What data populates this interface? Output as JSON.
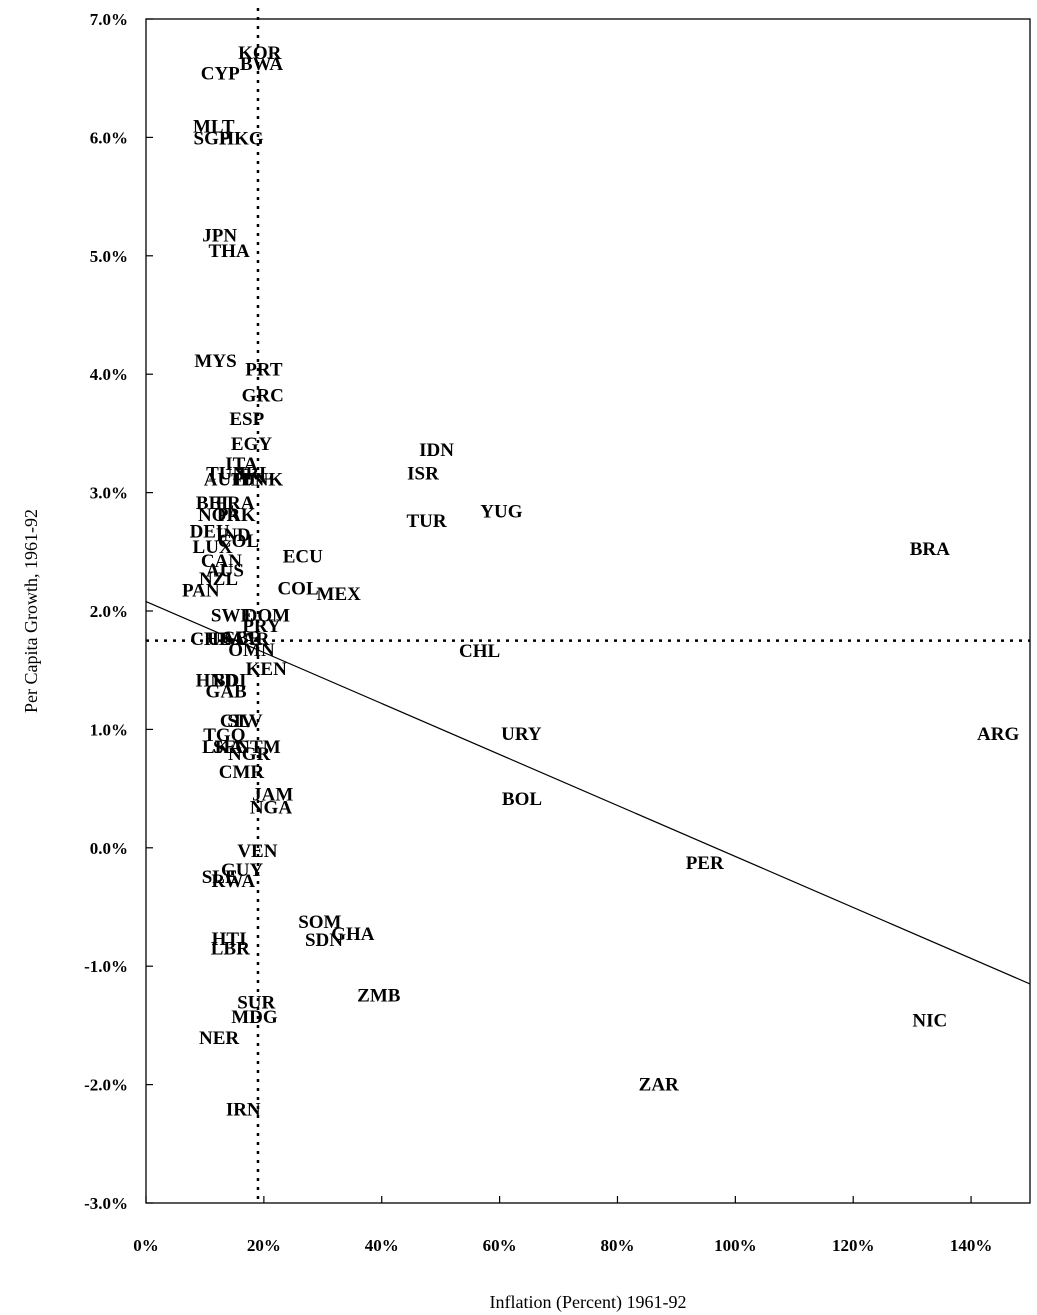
{
  "chart_data": {
    "type": "scatter",
    "xlabel": "Inflation (Percent) 1961-92",
    "ylabel": "Per Capita Growth, 1961-92",
    "xlim": [
      0,
      150
    ],
    "ylim": [
      -3,
      7
    ],
    "x_ticks": [
      0,
      20,
      40,
      60,
      80,
      100,
      120,
      140
    ],
    "x_tick_labels": [
      "0%",
      "20%",
      "40%",
      "60%",
      "80%",
      "100%",
      "120%",
      "140%"
    ],
    "y_ticks": [
      7,
      6,
      5,
      4,
      3,
      2,
      1,
      0,
      -1,
      -2,
      -3
    ],
    "y_tick_labels": [
      "7.0%",
      "6.0%",
      "5.0%",
      "4.0%",
      "3.0%",
      "2.0%",
      "1.0%",
      "0.0%",
      "-1.0%",
      "-2.0%",
      "-3.0%"
    ],
    "grid": false,
    "reference_lines": {
      "x": 19,
      "y": 1.75
    },
    "trend_line": [
      [
        0,
        2.08
      ],
      [
        150,
        -1.15
      ]
    ],
    "points": [
      {
        "label": "KOR",
        "x": 19.3,
        "y": 6.72
      },
      {
        "label": "BWA",
        "x": 19.6,
        "y": 6.63
      },
      {
        "label": "CYP",
        "x": 12.6,
        "y": 6.55
      },
      {
        "label": "MLT",
        "x": 11.5,
        "y": 6.1
      },
      {
        "label": "SGP",
        "x": 11.2,
        "y": 6.0
      },
      {
        "label": "HKG",
        "x": 16.2,
        "y": 6.0
      },
      {
        "label": "JPN",
        "x": 12.5,
        "y": 5.18
      },
      {
        "label": "THA",
        "x": 14.1,
        "y": 5.05
      },
      {
        "label": "MYS",
        "x": 11.8,
        "y": 4.12
      },
      {
        "label": "PRT",
        "x": 20.0,
        "y": 4.05
      },
      {
        "label": "GRC",
        "x": 19.8,
        "y": 3.83
      },
      {
        "label": "ESP",
        "x": 17.1,
        "y": 3.63
      },
      {
        "label": "EGY",
        "x": 17.9,
        "y": 3.42
      },
      {
        "label": "ITA",
        "x": 16.2,
        "y": 3.25
      },
      {
        "label": "TUN",
        "x": 13.6,
        "y": 3.17
      },
      {
        "label": "AUT",
        "x": 13.2,
        "y": 3.12
      },
      {
        "label": "IRL",
        "x": 18.5,
        "y": 3.17
      },
      {
        "label": "FIN",
        "x": 17.3,
        "y": 3.12
      },
      {
        "label": "DNK",
        "x": 19.7,
        "y": 3.12
      },
      {
        "label": "BEL",
        "x": 11.7,
        "y": 2.92
      },
      {
        "label": "FRA",
        "x": 15.1,
        "y": 2.92
      },
      {
        "label": "NOR",
        "x": 12.4,
        "y": 2.82
      },
      {
        "label": "PAK",
        "x": 15.3,
        "y": 2.82
      },
      {
        "label": "DEU",
        "x": 10.8,
        "y": 2.68
      },
      {
        "label": "IND",
        "x": 14.8,
        "y": 2.65
      },
      {
        "label": "COL",
        "x": 15.7,
        "y": 2.6
      },
      {
        "label": "LUX",
        "x": 11.3,
        "y": 2.55
      },
      {
        "label": "CAN",
        "x": 12.8,
        "y": 2.43
      },
      {
        "label": "AUS",
        "x": 13.4,
        "y": 2.35
      },
      {
        "label": "NZL",
        "x": 12.3,
        "y": 2.28
      },
      {
        "label": "PAN",
        "x": 9.3,
        "y": 2.18
      },
      {
        "label": "ECU",
        "x": 26.6,
        "y": 2.47
      },
      {
        "label": "COL",
        "x": 25.8,
        "y": 2.2
      },
      {
        "label": "MEX",
        "x": 32.7,
        "y": 2.15
      },
      {
        "label": "SWE",
        "x": 14.6,
        "y": 1.97
      },
      {
        "label": "DOM",
        "x": 20.5,
        "y": 1.97
      },
      {
        "label": "PRY",
        "x": 19.6,
        "y": 1.88
      },
      {
        "label": "GBR",
        "x": 16.2,
        "y": 1.78
      },
      {
        "label": "CHE",
        "x": 11.0,
        "y": 1.77
      },
      {
        "label": "USA",
        "x": 13.6,
        "y": 1.77
      },
      {
        "label": "MAR",
        "x": 17.1,
        "y": 1.77
      },
      {
        "label": "OMN",
        "x": 17.9,
        "y": 1.68
      },
      {
        "label": "KEN",
        "x": 20.4,
        "y": 1.52
      },
      {
        "label": "CHL",
        "x": 56.6,
        "y": 1.67
      },
      {
        "label": "HND",
        "x": 12.0,
        "y": 1.42
      },
      {
        "label": "BDI",
        "x": 14.2,
        "y": 1.42
      },
      {
        "label": "GAB",
        "x": 13.6,
        "y": 1.33
      },
      {
        "label": "CIV",
        "x": 15.5,
        "y": 1.08
      },
      {
        "label": "SLV",
        "x": 16.8,
        "y": 1.08
      },
      {
        "label": "TGO",
        "x": 13.3,
        "y": 0.96
      },
      {
        "label": "IDN",
        "x": 49.3,
        "y": 3.37
      },
      {
        "label": "ISR",
        "x": 47.0,
        "y": 3.17
      },
      {
        "label": "TUR",
        "x": 47.6,
        "y": 2.77
      },
      {
        "label": "YUG",
        "x": 60.3,
        "y": 2.85
      },
      {
        "label": "BRA",
        "x": 133.0,
        "y": 2.53
      },
      {
        "label": "URY",
        "x": 63.7,
        "y": 0.97
      },
      {
        "label": "ARG",
        "x": 144.6,
        "y": 0.97
      },
      {
        "label": "BOL",
        "x": 63.8,
        "y": 0.42
      },
      {
        "label": "PER",
        "x": 94.8,
        "y": -0.12
      },
      {
        "label": "LKA",
        "x": 13.0,
        "y": 0.86
      },
      {
        "label": "SEN",
        "x": 14.5,
        "y": 0.86
      },
      {
        "label": "NGR",
        "x": 17.5,
        "y": 0.8
      },
      {
        "label": "GTM",
        "x": 19.0,
        "y": 0.86
      },
      {
        "label": "CMR",
        "x": 16.2,
        "y": 0.65
      },
      {
        "label": "JAM",
        "x": 21.5,
        "y": 0.46
      },
      {
        "label": "NGA",
        "x": 21.2,
        "y": 0.35
      },
      {
        "label": "VEN",
        "x": 18.9,
        "y": -0.02
      },
      {
        "label": "GUY",
        "x": 16.3,
        "y": -0.18
      },
      {
        "label": "SLE",
        "x": 12.5,
        "y": -0.24
      },
      {
        "label": "RWA",
        "x": 14.8,
        "y": -0.27
      },
      {
        "label": "SOM",
        "x": 29.5,
        "y": -0.62
      },
      {
        "label": "GHA",
        "x": 35.1,
        "y": -0.72
      },
      {
        "label": "SDN",
        "x": 30.2,
        "y": -0.77
      },
      {
        "label": "HTI",
        "x": 14.1,
        "y": -0.76
      },
      {
        "label": "LBR",
        "x": 14.3,
        "y": -0.84
      },
      {
        "label": "ZMB",
        "x": 39.5,
        "y": -1.24
      },
      {
        "label": "SUR",
        "x": 18.7,
        "y": -1.3
      },
      {
        "label": "MDG",
        "x": 18.4,
        "y": -1.42
      },
      {
        "label": "NER",
        "x": 12.4,
        "y": -1.6
      },
      {
        "label": "NIC",
        "x": 133.0,
        "y": -1.45
      },
      {
        "label": "ZAR",
        "x": 87.0,
        "y": -1.99
      },
      {
        "label": "IRN",
        "x": 16.5,
        "y": -2.2
      }
    ]
  }
}
